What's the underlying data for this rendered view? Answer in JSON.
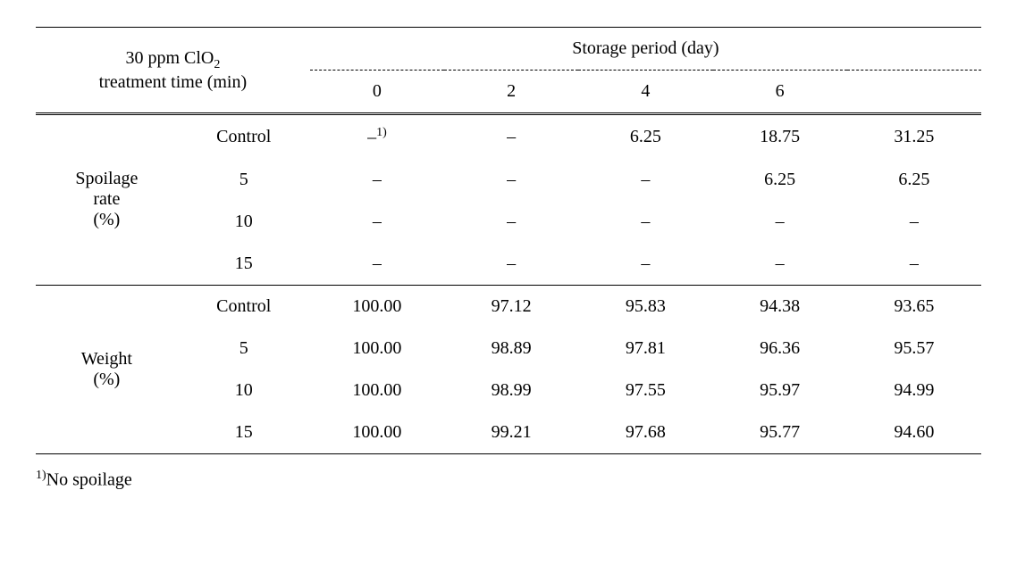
{
  "header": {
    "left_line1": "30 ppm ClO",
    "left_sub": "2",
    "left_line2": "treatment time (min)",
    "right": "Storage period (day)",
    "days": [
      "0",
      "2",
      "4",
      "6",
      ""
    ]
  },
  "sections": [
    {
      "label_line1": "Spoilage",
      "label_line2": "rate",
      "label_line3": "(%)",
      "rows": [
        {
          "treatment": "Control",
          "vals": [
            "–",
            "–",
            "6.25",
            "18.75",
            "31.25"
          ],
          "first_sup": "1)"
        },
        {
          "treatment": "5",
          "vals": [
            "–",
            "–",
            "–",
            "6.25",
            "6.25"
          ]
        },
        {
          "treatment": "10",
          "vals": [
            "–",
            "–",
            "–",
            "–",
            "–"
          ]
        },
        {
          "treatment": "15",
          "vals": [
            "–",
            "–",
            "–",
            "–",
            "–"
          ]
        }
      ]
    },
    {
      "label_line1": "Weight",
      "label_line2": "(%)",
      "rows": [
        {
          "treatment": "Control",
          "vals": [
            "100.00",
            "97.12",
            "95.83",
            "94.38",
            "93.65"
          ]
        },
        {
          "treatment": "5",
          "vals": [
            "100.00",
            "98.89",
            "97.81",
            "96.36",
            "95.57"
          ]
        },
        {
          "treatment": "10",
          "vals": [
            "100.00",
            "98.99",
            "97.55",
            "95.97",
            "94.99"
          ]
        },
        {
          "treatment": "15",
          "vals": [
            "100.00",
            "99.21",
            "97.68",
            "95.77",
            "94.60"
          ]
        }
      ]
    }
  ],
  "footnote_sup": "1)",
  "footnote_text": "No spoilage"
}
